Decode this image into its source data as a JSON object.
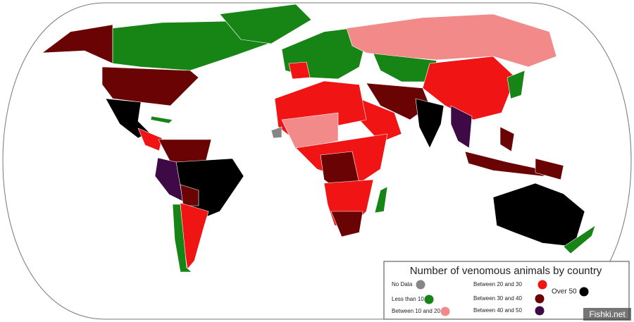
{
  "legend": {
    "title": "Number of venomous animals by country",
    "items": [
      {
        "label": "No Data",
        "color": "#868686"
      },
      {
        "label": "Less than 10",
        "color": "#168516"
      },
      {
        "label": "Between 10 and 20",
        "color": "#f28a8a"
      },
      {
        "label": "Between 20 and 30",
        "color": "#f01414"
      },
      {
        "label": "Between 30 and 40",
        "color": "#6a0404"
      },
      {
        "label": "Between 40 and 50",
        "color": "#3e0a46"
      },
      {
        "label": "Over 50",
        "color": "#000000"
      }
    ]
  },
  "watermark": "Fishki.net"
}
